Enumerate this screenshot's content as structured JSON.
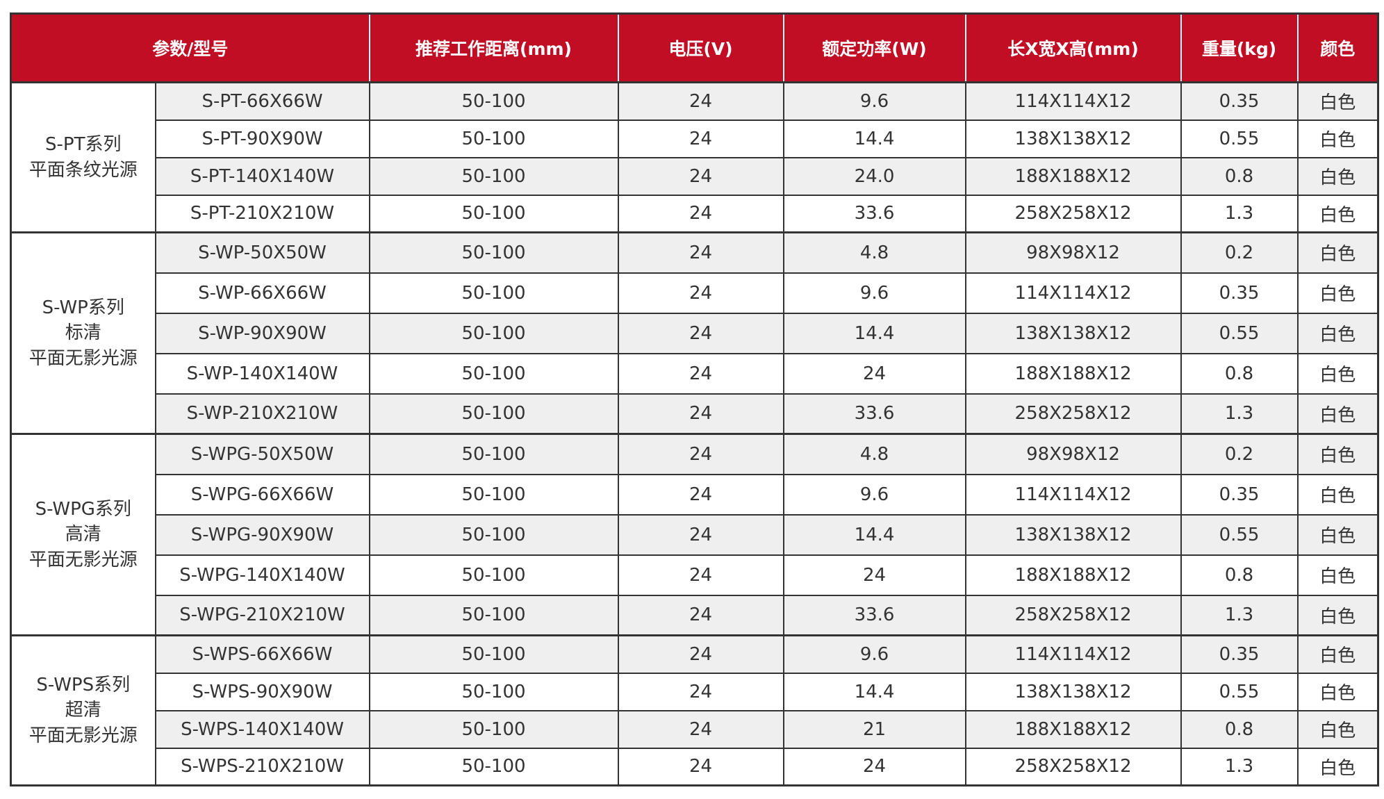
{
  "colors": {
    "header_bg": "#c20e24",
    "row_alt": "#efefef"
  },
  "headers": [
    "参数/型号",
    "推荐工作距离(mm)",
    "电压(V)",
    "额定功率(W)",
    "长X宽X高(mm)",
    "重量(kg)",
    "颜色"
  ],
  "groups": [
    {
      "series": [
        "S-PT系列",
        "平面条纹光源"
      ],
      "rows": [
        [
          "S-PT-66X66W",
          "50-100",
          "24",
          "9.6",
          "114X114X12",
          "0.35",
          "白色"
        ],
        [
          "S-PT-90X90W",
          "50-100",
          "24",
          "14.4",
          "138X138X12",
          "0.55",
          "白色"
        ],
        [
          "S-PT-140X140W",
          "50-100",
          "24",
          "24.0",
          "188X188X12",
          "0.8",
          "白色"
        ],
        [
          "S-PT-210X210W",
          "50-100",
          "24",
          "33.6",
          "258X258X12",
          "1.3",
          "白色"
        ]
      ]
    },
    {
      "series": [
        "S-WP系列",
        "标清",
        "平面无影光源"
      ],
      "rows": [
        [
          "S-WP-50X50W",
          "50-100",
          "24",
          "4.8",
          "98X98X12",
          "0.2",
          "白色"
        ],
        [
          "S-WP-66X66W",
          "50-100",
          "24",
          "9.6",
          "114X114X12",
          "0.35",
          "白色"
        ],
        [
          "S-WP-90X90W",
          "50-100",
          "24",
          "14.4",
          "138X138X12",
          "0.55",
          "白色"
        ],
        [
          "S-WP-140X140W",
          "50-100",
          "24",
          "24",
          "188X188X12",
          "0.8",
          "白色"
        ],
        [
          "S-WP-210X210W",
          "50-100",
          "24",
          "33.6",
          "258X258X12",
          "1.3",
          "白色"
        ]
      ]
    },
    {
      "series": [
        "S-WPG系列",
        "高清",
        "平面无影光源"
      ],
      "rows": [
        [
          "S-WPG-50X50W",
          "50-100",
          "24",
          "4.8",
          "98X98X12",
          "0.2",
          "白色"
        ],
        [
          "S-WPG-66X66W",
          "50-100",
          "24",
          "9.6",
          "114X114X12",
          "0.35",
          "白色"
        ],
        [
          "S-WPG-90X90W",
          "50-100",
          "24",
          "14.4",
          "138X138X12",
          "0.55",
          "白色"
        ],
        [
          "S-WPG-140X140W",
          "50-100",
          "24",
          "24",
          "188X188X12",
          "0.8",
          "白色"
        ],
        [
          "S-WPG-210X210W",
          "50-100",
          "24",
          "33.6",
          "258X258X12",
          "1.3",
          "白色"
        ]
      ]
    },
    {
      "series": [
        "S-WPS系列",
        "超清",
        "平面无影光源"
      ],
      "rows": [
        [
          "S-WPS-66X66W",
          "50-100",
          "24",
          "9.6",
          "114X114X12",
          "0.35",
          "白色"
        ],
        [
          "S-WPS-90X90W",
          "50-100",
          "24",
          "14.4",
          "138X138X12",
          "0.55",
          "白色"
        ],
        [
          "S-WPS-140X140W",
          "50-100",
          "24",
          "21",
          "188X188X12",
          "0.8",
          "白色"
        ],
        [
          "S-WPS-210X210W",
          "50-100",
          "24",
          "24",
          "258X258X12",
          "1.3",
          "白色"
        ]
      ]
    }
  ]
}
